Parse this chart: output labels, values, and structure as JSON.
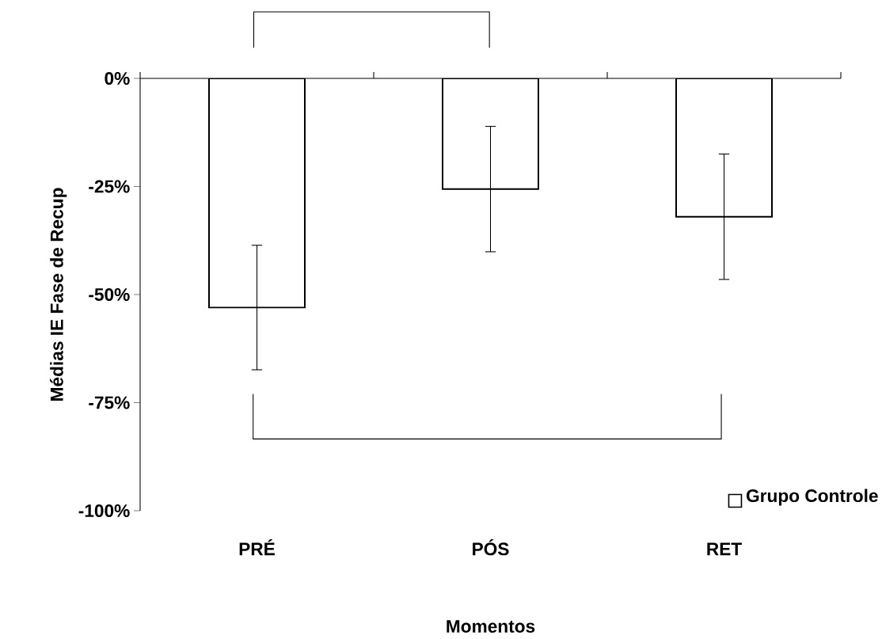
{
  "chart_data": {
    "type": "bar",
    "xlabel": "Momentos",
    "ylabel": "Médias IE Fase de Recup",
    "categories": [
      "PRÉ",
      "PÓS",
      "RET"
    ],
    "series": [
      {
        "name": "Grupo Controle",
        "color": "#ffffff",
        "values": [
          -53,
          -25.6,
          -32
        ],
        "errors": [
          14.4,
          14.5,
          14.5
        ]
      }
    ],
    "ylim": [
      -100,
      0
    ],
    "yticks": [
      {
        "value": -100,
        "label": "-100%"
      },
      {
        "value": -75,
        "label": "-75%"
      },
      {
        "value": -50,
        "label": "-50%"
      },
      {
        "value": -25,
        "label": "-25%"
      },
      {
        "value": 0,
        "label": "0%"
      }
    ],
    "grid": false,
    "legend": "bottom right"
  }
}
